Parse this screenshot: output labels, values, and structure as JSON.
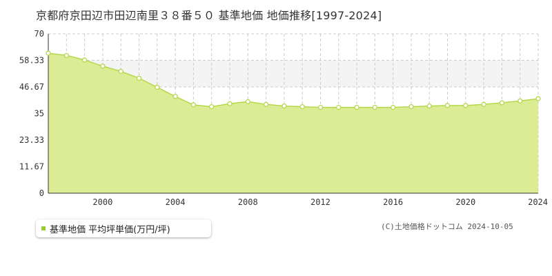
{
  "title": "京都府京田辺市田辺南里３８番５０ 基準地価 地価推移[1997-2024]",
  "legend": {
    "label": "基準地価 平均坪単価(万円/坪)"
  },
  "credit": "(C)土地価格ドットコム 2024-10-05",
  "colors": {
    "area_fill": "#dcec94",
    "line": "#b5d84a",
    "marker_fill": "#ffffff",
    "band": "#f4f4f4",
    "grid": "#cccccc",
    "legend_swatch": "#99cc33"
  },
  "chart_data": {
    "type": "area",
    "title": "京都府京田辺市田辺南里３８番５０ 基準地価 地価推移[1997-2024]",
    "xlabel": "",
    "ylabel": "",
    "xlim": [
      1997,
      2024
    ],
    "ylim": [
      0,
      70
    ],
    "y_ticks": [
      "0",
      "11.67",
      "23.33",
      "35",
      "46.67",
      "58.33",
      "70"
    ],
    "x_ticks": [
      "2000",
      "2004",
      "2008",
      "2012",
      "2016",
      "2020",
      "2024"
    ],
    "highlight_band": [
      46.67,
      58.33
    ],
    "grid": true,
    "legend_position": "bottom-left",
    "series": [
      {
        "name": "基準地価 平均坪単価(万円/坪)",
        "x": [
          1997,
          1998,
          1999,
          2000,
          2001,
          2002,
          2003,
          2004,
          2005,
          2006,
          2007,
          2008,
          2009,
          2010,
          2011,
          2012,
          2013,
          2014,
          2015,
          2016,
          2017,
          2018,
          2019,
          2020,
          2021,
          2022,
          2023,
          2024
        ],
        "values": [
          61.5,
          60.5,
          58.5,
          55.8,
          53.5,
          50.5,
          46.5,
          42.5,
          38.8,
          38.0,
          39.3,
          40.2,
          39.0,
          38.3,
          38.0,
          37.7,
          37.7,
          37.7,
          37.7,
          37.7,
          38.0,
          38.3,
          38.5,
          38.5,
          39.0,
          39.7,
          40.5,
          41.5
        ]
      }
    ]
  }
}
